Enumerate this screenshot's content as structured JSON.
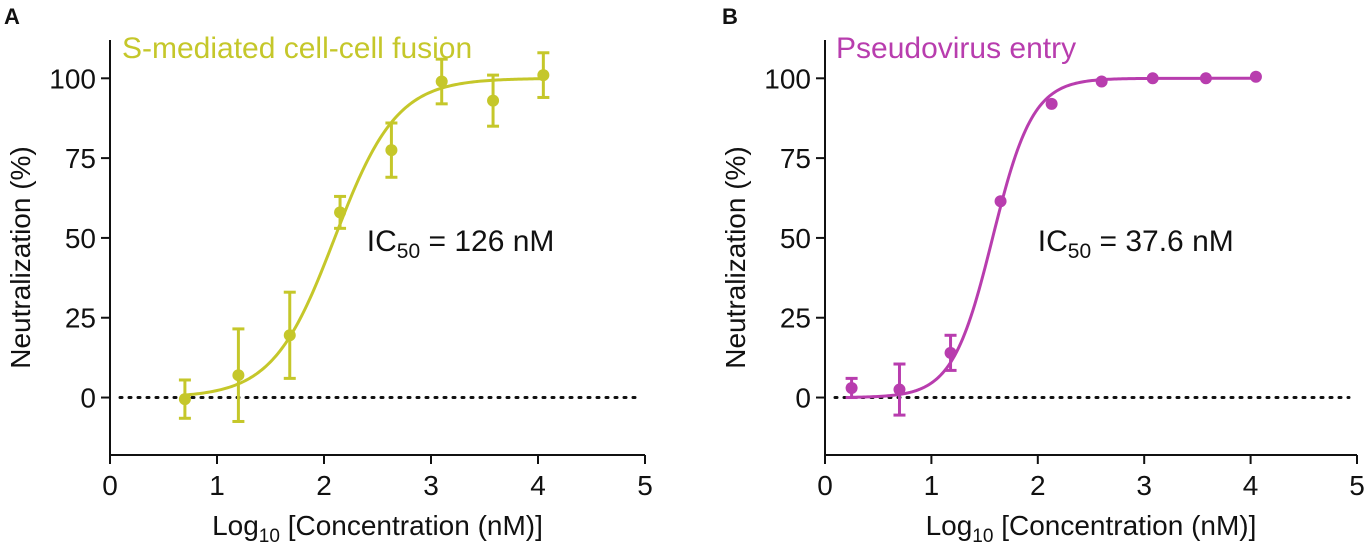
{
  "chart_data": [
    {
      "panel_label": "A",
      "type": "scatter",
      "title": "S-mediated cell-cell fusion",
      "color": "#C5C72A",
      "xlabel_main": "Log",
      "xlabel_sub": "10",
      "xlabel_rest": " [Concentration (nM)]",
      "ylabel": "Neutralization (%)",
      "xlim": [
        0,
        5
      ],
      "ylim": [
        -18,
        112
      ],
      "xticks": [
        0,
        1,
        2,
        3,
        4,
        5
      ],
      "xtick_labels": [
        "0",
        "1",
        "2",
        "3",
        "4",
        "5"
      ],
      "yticks": [
        0,
        25,
        50,
        75,
        100
      ],
      "ytick_labels": [
        "0",
        "25",
        "50",
        "75",
        "100"
      ],
      "x": [
        0.7,
        1.2,
        1.68,
        2.15,
        2.63,
        3.1,
        3.58,
        4.05
      ],
      "y": [
        -0.5,
        7,
        19.5,
        58,
        77.5,
        99,
        93,
        101
      ],
      "err": [
        6,
        14.5,
        13.5,
        5,
        8.5,
        7,
        8,
        7
      ],
      "fit": {
        "bottom": 0,
        "top": 100,
        "logIC50": 2.1,
        "hill": 1.5
      },
      "annotation": {
        "main": "IC",
        "sub": "50",
        "rest": " = 126 nM",
        "x": 2.4,
        "y": 49
      },
      "reference_line_y": 0
    },
    {
      "panel_label": "B",
      "type": "scatter",
      "title": "Pseudovirus entry",
      "color": "#B83DAE",
      "xlabel_main": "Log",
      "xlabel_sub": "10",
      "xlabel_rest": " [Concentration (nM)]",
      "ylabel": "Neutralization (%)",
      "xlim": [
        0,
        5
      ],
      "ylim": [
        -18,
        112
      ],
      "xticks": [
        0,
        1,
        2,
        3,
        4,
        5
      ],
      "xtick_labels": [
        "0",
        "1",
        "2",
        "3",
        "4",
        "5"
      ],
      "yticks": [
        0,
        25,
        50,
        75,
        100
      ],
      "ytick_labels": [
        "0",
        "25",
        "50",
        "75",
        "100"
      ],
      "x": [
        0.25,
        0.7,
        1.18,
        1.65,
        2.13,
        2.6,
        3.08,
        3.58,
        4.05
      ],
      "y": [
        3,
        2.5,
        14,
        61.5,
        92,
        99,
        100,
        100,
        100.5
      ],
      "err": [
        3,
        8,
        5.5,
        0,
        0,
        0,
        0,
        0,
        0
      ],
      "fit": {
        "bottom": 0,
        "top": 100,
        "logIC50": 1.575,
        "hill": 2.3
      },
      "annotation": {
        "main": "IC",
        "sub": "50",
        "rest": " = 37.6 nM",
        "x": 2.0,
        "y": 49
      },
      "reference_line_y": 0
    }
  ]
}
